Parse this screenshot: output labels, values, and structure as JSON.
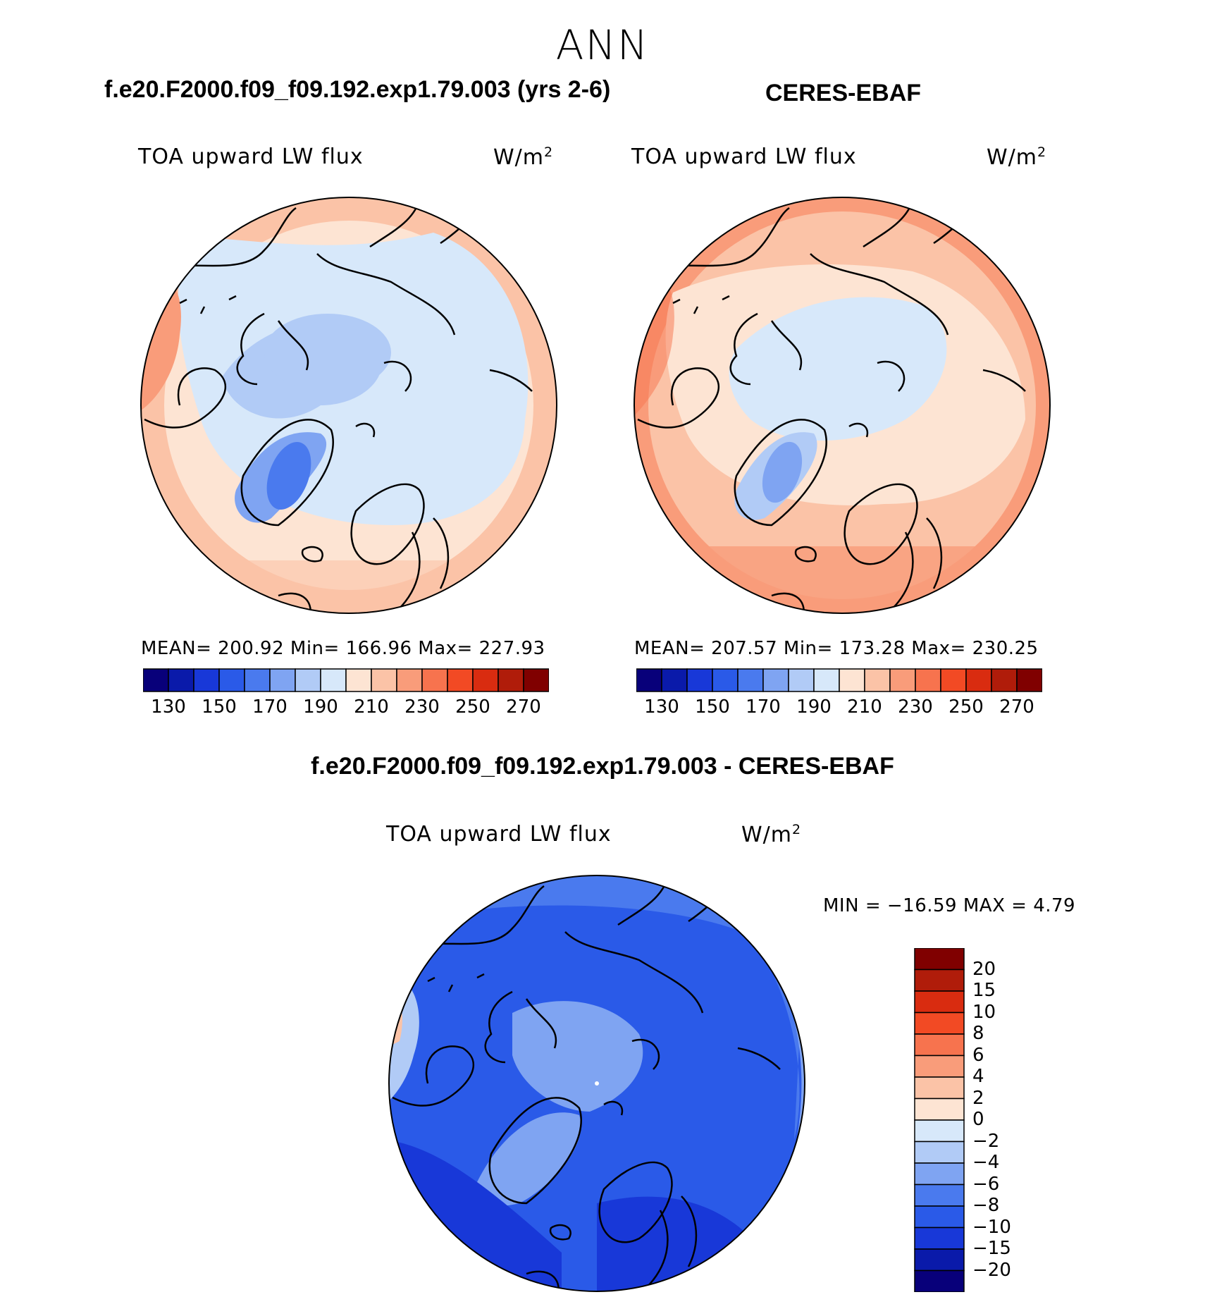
{
  "title": "ANN",
  "panels": {
    "model": {
      "case_title": "f.e20.F2000.f09_f09.192.exp1.79.003 (yrs 2-6)",
      "variable": "TOA upward LW flux",
      "units_base": "W/m",
      "units_exp": "2",
      "stats": "MEAN= 200.92   Min= 166.96   Max= 227.93"
    },
    "obs": {
      "case_title": "CERES-EBAF",
      "variable": "TOA upward LW flux",
      "units_base": "W/m",
      "units_exp": "2",
      "stats": "MEAN= 207.57   Min= 173.28   Max= 230.25"
    },
    "diff": {
      "case_title": "f.e20.F2000.f09_f09.192.exp1.79.003 - CERES-EBAF",
      "variable": "TOA upward LW flux",
      "units_base": "W/m",
      "units_exp": "2",
      "stats": "MIN = −16.59 MAX =     4.79"
    }
  },
  "colorbar_abs": {
    "colors": [
      "#08007a",
      "#0a1aaa",
      "#1838d8",
      "#2a5ae8",
      "#4a7aee",
      "#7fa4f2",
      "#b1cbf6",
      "#d7e8fa",
      "#fde4d3",
      "#fbc3a7",
      "#f99c7a",
      "#f7734e",
      "#f24a24",
      "#d92c10",
      "#b01c0a",
      "#800000"
    ],
    "labels": [
      "130",
      "150",
      "170",
      "190",
      "210",
      "230",
      "250",
      "270"
    ]
  },
  "colorbar_diff": {
    "colors": [
      "#800000",
      "#b01c0a",
      "#d92c10",
      "#f24a24",
      "#f7734e",
      "#fba882",
      "#fde4d3",
      "#d7e8fa",
      "#b1cbf6",
      "#7fa4f2",
      "#4a7aee",
      "#2a5ae8",
      "#1838d8",
      "#0a1aaa",
      "#08007a"
    ],
    "labels": [
      "20",
      "15",
      "10",
      "8",
      "6",
      "4",
      "2",
      "0",
      "−2",
      "−4",
      "−6",
      "−8",
      "−10",
      "−15",
      "−20"
    ]
  },
  "chart_data": [
    {
      "type": "heatmap",
      "title": "f.e20.F2000.f09_f09.192.exp1.79.003 (yrs 2-6)",
      "variable": "TOA upward LW flux",
      "units": "W/m2",
      "projection": "polar stereographic (North Pole)",
      "mean": 200.92,
      "min": 166.96,
      "max": 227.93,
      "contour_levels": [
        130,
        140,
        150,
        160,
        170,
        180,
        190,
        200,
        210,
        220,
        230,
        240,
        250,
        260,
        270
      ]
    },
    {
      "type": "heatmap",
      "title": "CERES-EBAF",
      "variable": "TOA upward LW flux",
      "units": "W/m2",
      "projection": "polar stereographic (North Pole)",
      "mean": 207.57,
      "min": 173.28,
      "max": 230.25,
      "contour_levels": [
        130,
        140,
        150,
        160,
        170,
        180,
        190,
        200,
        210,
        220,
        230,
        240,
        250,
        260,
        270
      ]
    },
    {
      "type": "heatmap",
      "title": "f.e20.F2000.f09_f09.192.exp1.79.003 - CERES-EBAF",
      "variable": "TOA upward LW flux",
      "units": "W/m2",
      "projection": "polar stereographic (North Pole)",
      "min": -16.59,
      "max": 4.79,
      "contour_levels": [
        -20,
        -15,
        -10,
        -8,
        -6,
        -4,
        -2,
        0,
        2,
        4,
        6,
        8,
        10,
        15,
        20
      ]
    }
  ]
}
